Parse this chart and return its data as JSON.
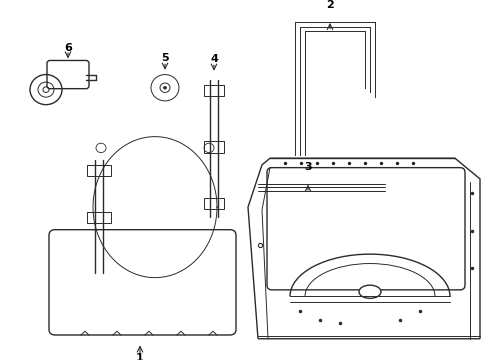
{
  "background_color": "#ffffff",
  "line_color": "#2a2a2a",
  "figsize": [
    4.89,
    3.6
  ],
  "dpi": 100,
  "xlim": [
    0,
    489
  ],
  "ylim": [
    0,
    360
  ]
}
